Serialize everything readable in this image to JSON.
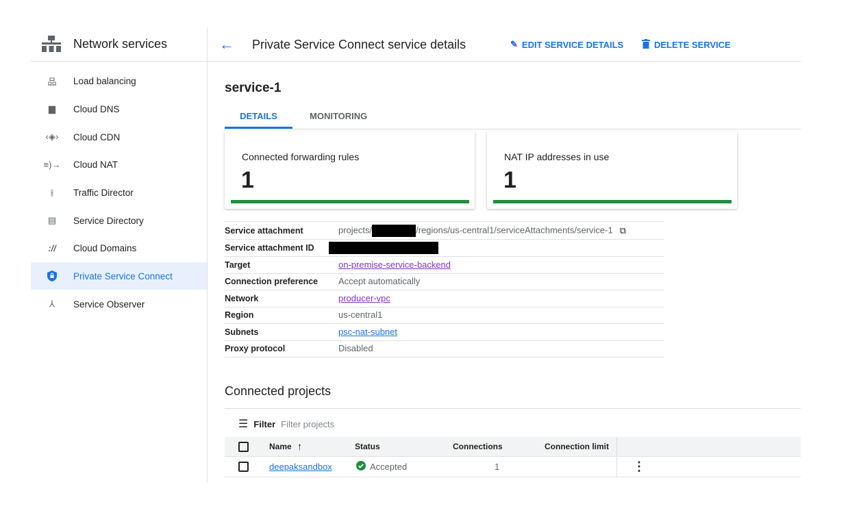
{
  "sidebar": {
    "title": "Network services",
    "items": [
      {
        "label": "Load balancing",
        "icon": "load-balancing-icon"
      },
      {
        "label": "Cloud DNS",
        "icon": "cloud-dns-icon"
      },
      {
        "label": "Cloud CDN",
        "icon": "cloud-cdn-icon"
      },
      {
        "label": "Cloud NAT",
        "icon": "cloud-nat-icon"
      },
      {
        "label": "Traffic Director",
        "icon": "traffic-director-icon"
      },
      {
        "label": "Service Directory",
        "icon": "service-directory-icon"
      },
      {
        "label": "Cloud Domains",
        "icon": "cloud-domains-icon"
      },
      {
        "label": "Private Service Connect",
        "icon": "shield-lock-icon",
        "active": true
      },
      {
        "label": "Service Observer",
        "icon": "service-observer-icon"
      }
    ]
  },
  "header": {
    "title": "Private Service Connect service details",
    "edit_label": "EDIT SERVICE DETAILS",
    "delete_label": "DELETE SERVICE"
  },
  "service": {
    "name": "service-1",
    "tabs": [
      "DETAILS",
      "MONITORING"
    ],
    "active_tab": "DETAILS"
  },
  "cards": [
    {
      "label": "Connected forwarding rules",
      "value": "1"
    },
    {
      "label": "NAT IP addresses in use",
      "value": "1"
    }
  ],
  "details": {
    "attachment_label": "Service attachment",
    "attachment_prefix": "projects/",
    "attachment_suffix": "/regions/us-central1/serviceAttachments/service-1",
    "attachment_id_label": "Service attachment ID",
    "target_label": "Target",
    "target": "on-premise-service-backend",
    "pref_label": "Connection preference",
    "pref": "Accept automatically",
    "network_label": "Network",
    "network": "producer-vpc",
    "region_label": "Region",
    "region": "us-central1",
    "subnets_label": "Subnets",
    "subnets": "psc-nat-subnet",
    "proxy_label": "Proxy protocol",
    "proxy": "Disabled"
  },
  "projects": {
    "title": "Connected projects",
    "filter_label": "Filter",
    "filter_placeholder": "Filter projects",
    "columns": [
      "Name",
      "Status",
      "Connections",
      "Connection limit"
    ],
    "rows": [
      {
        "name": "deepaksandbox",
        "status": "Accepted",
        "connections": "1",
        "limit": ""
      }
    ]
  },
  "colors": {
    "accent": "#1a73e8",
    "success": "#1e8e3e",
    "link_visited": "#8430ce"
  }
}
